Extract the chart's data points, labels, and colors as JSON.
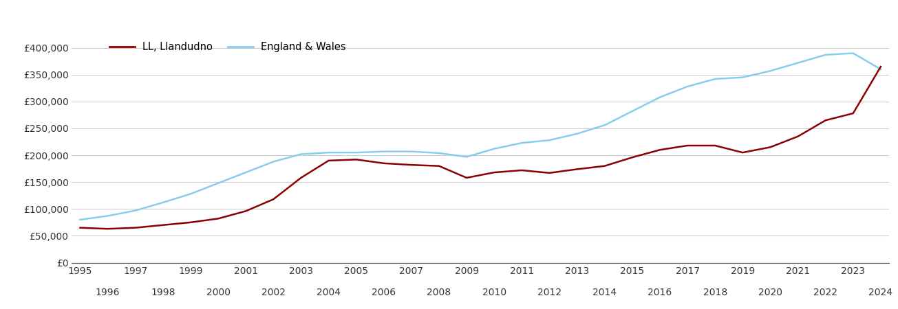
{
  "years": [
    1995,
    1996,
    1997,
    1998,
    1999,
    2000,
    2001,
    2002,
    2003,
    2004,
    2005,
    2006,
    2007,
    2008,
    2009,
    2010,
    2011,
    2012,
    2013,
    2014,
    2015,
    2016,
    2017,
    2018,
    2019,
    2020,
    2021,
    2022,
    2023,
    2024
  ],
  "llandudno": [
    65000,
    63000,
    65000,
    70000,
    75000,
    82000,
    96000,
    118000,
    158000,
    190000,
    192000,
    185000,
    182000,
    180000,
    158000,
    168000,
    172000,
    167000,
    174000,
    180000,
    196000,
    210000,
    218000,
    218000,
    205000,
    215000,
    235000,
    265000,
    278000,
    365000
  ],
  "england_wales": [
    80000,
    87000,
    97000,
    112000,
    128000,
    148000,
    168000,
    188000,
    202000,
    205000,
    205000,
    207000,
    207000,
    204000,
    197000,
    212000,
    223000,
    228000,
    240000,
    256000,
    282000,
    308000,
    328000,
    342000,
    345000,
    357000,
    372000,
    387000,
    390000,
    360000
  ],
  "llandudno_color": "#8B0000",
  "england_wales_color": "#87CEEB",
  "llandudno_label": "LL, Llandudno",
  "england_wales_label": "England & Wales",
  "ylim": [
    0,
    420000
  ],
  "yticks": [
    0,
    50000,
    100000,
    150000,
    200000,
    250000,
    300000,
    350000,
    400000
  ],
  "ytick_labels": [
    "£0",
    "£50,000",
    "£100,000",
    "£150,000",
    "£200,000",
    "£250,000",
    "£300,000",
    "£350,000",
    "£400,000"
  ],
  "background_color": "#ffffff",
  "grid_color": "#cccccc",
  "line_width": 1.8,
  "odd_years": [
    1995,
    1997,
    1999,
    2001,
    2003,
    2005,
    2007,
    2009,
    2011,
    2013,
    2015,
    2017,
    2019,
    2021,
    2023
  ],
  "even_years": [
    1996,
    1998,
    2000,
    2002,
    2004,
    2006,
    2008,
    2010,
    2012,
    2014,
    2016,
    2018,
    2020,
    2022,
    2024
  ]
}
